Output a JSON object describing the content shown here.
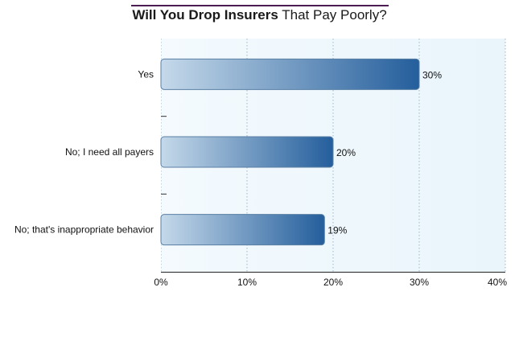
{
  "chart_data": {
    "type": "bar",
    "orientation": "horizontal",
    "title_bold": "Will You Drop Insurers",
    "title_regular": "That Pay Poorly?",
    "categories": [
      "Yes",
      "No; I need all payers",
      "No; that's inappropriate behavior"
    ],
    "values": [
      30,
      20,
      19
    ],
    "value_labels": [
      "30%",
      "20%",
      "19%"
    ],
    "xlim": [
      0,
      40
    ],
    "xticks": [
      0,
      10,
      20,
      30,
      40
    ],
    "xtick_labels": [
      "0%",
      "10%",
      "20%",
      "30%",
      "40%"
    ],
    "xlabel": "",
    "ylabel": "",
    "grid": true,
    "colors": {
      "bar_dark": "#245e9c",
      "bar_light": "#c5d9ea",
      "plot_bg_left": "#f4fafe",
      "plot_bg_right": "#e9f5fb",
      "title_rule": "#4b1d52"
    }
  }
}
